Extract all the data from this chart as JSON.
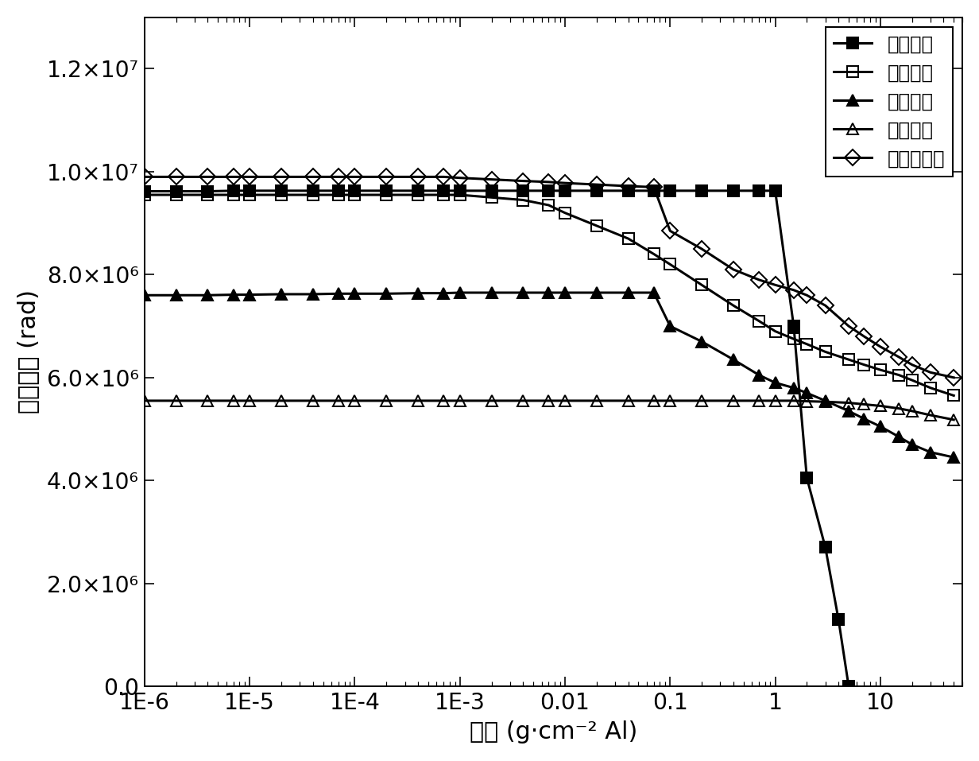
{
  "xlabel": "厚度 (g·cm⁻² Al)",
  "ylabel": "吸收剂量 (rad)",
  "xlim": [
    1e-06,
    60
  ],
  "ylim": [
    0,
    13000000.0
  ],
  "yticks": [
    0,
    2000000,
    4000000,
    6000000,
    8000000,
    10000000,
    12000000
  ],
  "ytick_labels": [
    "0.0",
    "2.0×10⁶",
    "4.0×10⁶",
    "6.0×10⁶",
    "8.0×10⁶",
    "1.0×10⁷",
    "1.2×10⁷"
  ],
  "xtick_vals": [
    1e-06,
    1e-05,
    0.0001,
    0.001,
    0.01,
    0.1,
    1,
    10
  ],
  "xtick_labels": [
    "1E-6",
    "1E-5",
    "1E-4",
    "1E-3",
    "0.01",
    "0.1",
    "1",
    "10"
  ],
  "trapped_e_x": [
    1e-06,
    2e-06,
    4e-06,
    7e-06,
    1e-05,
    2e-05,
    4e-05,
    7e-05,
    0.0001,
    0.0002,
    0.0004,
    0.0007,
    0.001,
    0.002,
    0.004,
    0.007,
    0.01,
    0.02,
    0.04,
    0.07,
    0.1,
    0.2,
    0.4,
    0.7,
    1.0,
    1.5,
    2.0,
    3.0,
    4.0,
    5.0
  ],
  "trapped_e_y": [
    9620000.0,
    9620000.0,
    9620000.0,
    9630000.0,
    9630000.0,
    9630000.0,
    9630000.0,
    9630000.0,
    9630000.0,
    9630000.0,
    9630000.0,
    9630000.0,
    9630000.0,
    9630000.0,
    9630000.0,
    9630000.0,
    9630000.0,
    9630000.0,
    9630000.0,
    9630000.0,
    9630000.0,
    9630000.0,
    9630000.0,
    9630000.0,
    9630000.0,
    7000000.0,
    4050000.0,
    2700000.0,
    1300000.0,
    0.0
  ],
  "trapped_p_x": [
    1e-06,
    2e-06,
    4e-06,
    7e-06,
    1e-05,
    2e-05,
    4e-05,
    7e-05,
    0.0001,
    0.0002,
    0.0004,
    0.0007,
    0.001,
    0.002,
    0.004,
    0.007,
    0.01,
    0.02,
    0.04,
    0.07,
    0.1,
    0.2,
    0.4,
    0.7,
    1.0,
    1.5,
    2.0,
    3.0,
    5.0,
    7.0,
    10.0,
    15.0,
    20.0,
    30.0,
    50.0
  ],
  "trapped_p_y": [
    9550000.0,
    9550000.0,
    9550000.0,
    9550000.0,
    9550000.0,
    9550000.0,
    9550000.0,
    9550000.0,
    9550000.0,
    9550000.0,
    9550000.0,
    9550000.0,
    9550000.0,
    9500000.0,
    9450000.0,
    9350000.0,
    9200000.0,
    8950000.0,
    8700000.0,
    8400000.0,
    8200000.0,
    7800000.0,
    7400000.0,
    7100000.0,
    6900000.0,
    6750000.0,
    6650000.0,
    6500000.0,
    6350000.0,
    6250000.0,
    6150000.0,
    6050000.0,
    5950000.0,
    5800000.0,
    5650000.0
  ],
  "sec_photon_x": [
    1e-06,
    2e-06,
    4e-06,
    7e-06,
    1e-05,
    2e-05,
    4e-05,
    7e-05,
    0.0001,
    0.0002,
    0.0004,
    0.0007,
    0.001,
    0.002,
    0.004,
    0.007,
    0.01,
    0.02,
    0.04,
    0.07,
    0.1,
    0.2,
    0.4,
    0.7,
    1.0,
    1.5,
    2.0,
    3.0,
    5.0,
    7.0,
    10.0,
    15.0,
    20.0,
    30.0,
    50.0
  ],
  "sec_photon_y": [
    7600000.0,
    7600000.0,
    7600000.0,
    7610000.0,
    7610000.0,
    7620000.0,
    7620000.0,
    7630000.0,
    7630000.0,
    7630000.0,
    7640000.0,
    7640000.0,
    7650000.0,
    7650000.0,
    7650000.0,
    7650000.0,
    7650000.0,
    7650000.0,
    7650000.0,
    7650000.0,
    7000000.0,
    6700000.0,
    6350000.0,
    6050000.0,
    5900000.0,
    5800000.0,
    5700000.0,
    5550000.0,
    5350000.0,
    5200000.0,
    5050000.0,
    4850000.0,
    4700000.0,
    4550000.0,
    4450000.0
  ],
  "solar_p_x": [
    1e-06,
    2e-06,
    4e-06,
    7e-06,
    1e-05,
    2e-05,
    4e-05,
    7e-05,
    0.0001,
    0.0002,
    0.0004,
    0.0007,
    0.001,
    0.002,
    0.004,
    0.007,
    0.01,
    0.02,
    0.04,
    0.07,
    0.1,
    0.2,
    0.4,
    0.7,
    1.0,
    1.5,
    2.0,
    3.0,
    5.0,
    7.0,
    10.0,
    15.0,
    20.0,
    30.0,
    50.0
  ],
  "solar_p_y": [
    5550000.0,
    5550000.0,
    5550000.0,
    5550000.0,
    5550000.0,
    5550000.0,
    5550000.0,
    5550000.0,
    5550000.0,
    5550000.0,
    5550000.0,
    5550000.0,
    5550000.0,
    5550000.0,
    5550000.0,
    5550000.0,
    5550000.0,
    5550000.0,
    5550000.0,
    5550000.0,
    5550000.0,
    5550000.0,
    5550000.0,
    5550000.0,
    5550000.0,
    5550000.0,
    5540000.0,
    5530000.0,
    5510000.0,
    5480000.0,
    5450000.0,
    5400000.0,
    5350000.0,
    5270000.0,
    5180000.0
  ],
  "total_x": [
    1e-06,
    2e-06,
    4e-06,
    7e-06,
    1e-05,
    2e-05,
    4e-05,
    7e-05,
    0.0001,
    0.0002,
    0.0004,
    0.0007,
    0.001,
    0.002,
    0.004,
    0.007,
    0.01,
    0.02,
    0.04,
    0.07,
    0.1,
    0.2,
    0.4,
    0.7,
    1.0,
    1.5,
    2.0,
    3.0,
    5.0,
    7.0,
    10.0,
    15.0,
    20.0,
    30.0,
    50.0
  ],
  "total_y": [
    9900000.0,
    9900000.0,
    9900000.0,
    9900000.0,
    9900000.0,
    9900000.0,
    9900000.0,
    9900000.0,
    9900000.0,
    9900000.0,
    9900000.0,
    9900000.0,
    9880000.0,
    9850000.0,
    9820000.0,
    9800000.0,
    9780000.0,
    9750000.0,
    9720000.0,
    9700000.0,
    8850000.0,
    8500000.0,
    8100000.0,
    7900000.0,
    7800000.0,
    7700000.0,
    7600000.0,
    7400000.0,
    7000000.0,
    6800000.0,
    6600000.0,
    6400000.0,
    6250000.0,
    6100000.0,
    6000000.0
  ],
  "label_trapped_e": "俨获电子",
  "label_trapped_p": "俨获质子",
  "label_sec_photon": "二次光子",
  "label_solar_p": "太阳质子",
  "label_total": "总吸收剂量",
  "linewidth": 1.5,
  "markersize": 7
}
